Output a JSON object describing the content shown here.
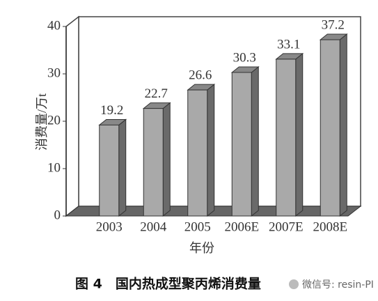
{
  "chart_data": {
    "type": "bar3d",
    "y_label": "消费量/万t",
    "x_label": "年份",
    "caption": "图 4　国内热成型聚丙烯消费量",
    "categories": [
      "2003",
      "2004",
      "2005",
      "2006E",
      "2007E",
      "2008E"
    ],
    "values": [
      19.2,
      22.7,
      26.6,
      30.3,
      33.1,
      37.2
    ],
    "color": "#a9a9a9",
    "ylim": [
      0,
      40
    ],
    "yticks": [
      0,
      10,
      20,
      30,
      40
    ]
  },
  "watermark": "微信号: resin-PI"
}
